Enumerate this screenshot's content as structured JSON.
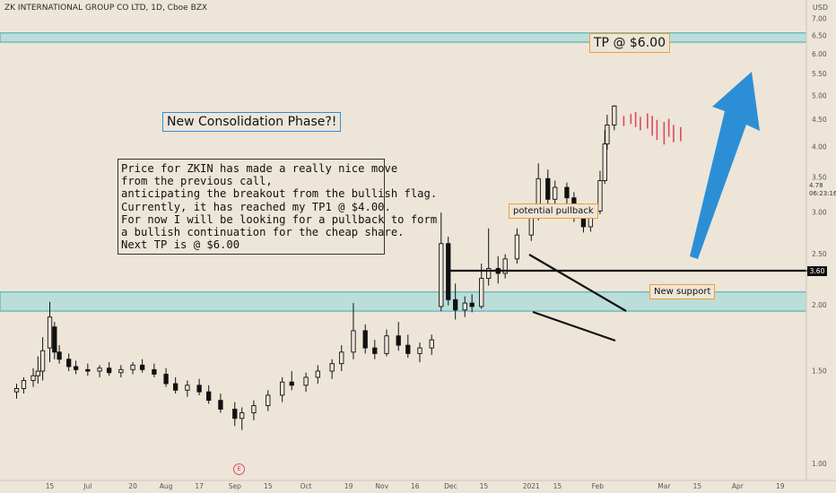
{
  "header": {
    "title": "ZK INTERNATIONAL GROUP CO LTD, 1D, Cboe BZX",
    "currency": "USD"
  },
  "chart_data": {
    "type": "candlestick",
    "title": "ZK INTERNATIONAL GROUP CO LTD, 1D, Cboe BZX",
    "ylabel": "USD",
    "y_scale": "log",
    "ylim": [
      0.93,
      7.6
    ],
    "y_ticks": [
      7.0,
      6.5,
      6.0,
      5.5,
      5.0,
      4.5,
      4.0,
      3.5,
      3.0,
      2.5,
      2.0,
      1.5,
      1.0
    ],
    "y_tick_labels": [
      "7.00",
      "6.50",
      "6.00",
      "5.50",
      "5.00",
      "4.50",
      "4.00",
      "3.50",
      "3.00",
      "2.50",
      "2.00",
      "1.50",
      "1.00"
    ],
    "x_tick_labels": [
      "15",
      "Jul",
      "20",
      "Aug",
      "17",
      "Sep",
      "15",
      "Oct",
      "19",
      "Nov",
      "16",
      "Dec",
      "15",
      "2021",
      "15",
      "Feb",
      "Mar",
      "15",
      "Apr",
      "19"
    ],
    "x_tick_dates": [
      "2020-06-15",
      "2020-07-01",
      "2020-07-20",
      "2020-08-03",
      "2020-08-17",
      "2020-09-01",
      "2020-09-15",
      "2020-10-01",
      "2020-10-19",
      "2020-11-02",
      "2020-11-16",
      "2020-12-01",
      "2020-12-15",
      "2021-01-04",
      "2021-01-15",
      "2021-02-01",
      "2021-03-01",
      "2021-03-15",
      "2021-04-01",
      "2021-04-19"
    ],
    "candles": [
      {
        "date": "2020-06-01",
        "open": 1.37,
        "high": 1.42,
        "low": 1.33,
        "close": 1.39
      },
      {
        "date": "2020-06-04",
        "open": 1.39,
        "high": 1.46,
        "low": 1.36,
        "close": 1.44
      },
      {
        "date": "2020-06-08",
        "open": 1.44,
        "high": 1.52,
        "low": 1.4,
        "close": 1.47
      },
      {
        "date": "2020-06-10",
        "open": 1.47,
        "high": 1.6,
        "low": 1.42,
        "close": 1.5
      },
      {
        "date": "2020-06-12",
        "open": 1.5,
        "high": 1.74,
        "low": 1.44,
        "close": 1.64
      },
      {
        "date": "2020-06-15",
        "open": 1.66,
        "high": 2.03,
        "low": 1.56,
        "close": 1.9
      },
      {
        "date": "2020-06-17",
        "open": 1.82,
        "high": 1.86,
        "low": 1.58,
        "close": 1.63
      },
      {
        "date": "2020-06-19",
        "open": 1.63,
        "high": 1.68,
        "low": 1.55,
        "close": 1.58
      },
      {
        "date": "2020-06-23",
        "open": 1.58,
        "high": 1.62,
        "low": 1.5,
        "close": 1.53
      },
      {
        "date": "2020-06-26",
        "open": 1.53,
        "high": 1.57,
        "low": 1.48,
        "close": 1.51
      },
      {
        "date": "2020-07-01",
        "open": 1.51,
        "high": 1.55,
        "low": 1.47,
        "close": 1.5
      },
      {
        "date": "2020-07-06",
        "open": 1.5,
        "high": 1.54,
        "low": 1.46,
        "close": 1.52
      },
      {
        "date": "2020-07-10",
        "open": 1.52,
        "high": 1.56,
        "low": 1.47,
        "close": 1.49
      },
      {
        "date": "2020-07-15",
        "open": 1.49,
        "high": 1.54,
        "low": 1.46,
        "close": 1.51
      },
      {
        "date": "2020-07-20",
        "open": 1.51,
        "high": 1.56,
        "low": 1.48,
        "close": 1.54
      },
      {
        "date": "2020-07-24",
        "open": 1.54,
        "high": 1.58,
        "low": 1.49,
        "close": 1.51
      },
      {
        "date": "2020-07-29",
        "open": 1.51,
        "high": 1.55,
        "low": 1.46,
        "close": 1.48
      },
      {
        "date": "2020-08-03",
        "open": 1.48,
        "high": 1.52,
        "low": 1.4,
        "close": 1.42
      },
      {
        "date": "2020-08-07",
        "open": 1.42,
        "high": 1.46,
        "low": 1.36,
        "close": 1.38
      },
      {
        "date": "2020-08-12",
        "open": 1.38,
        "high": 1.44,
        "low": 1.34,
        "close": 1.41
      },
      {
        "date": "2020-08-17",
        "open": 1.41,
        "high": 1.45,
        "low": 1.35,
        "close": 1.37
      },
      {
        "date": "2020-08-21",
        "open": 1.37,
        "high": 1.41,
        "low": 1.3,
        "close": 1.32
      },
      {
        "date": "2020-08-26",
        "open": 1.32,
        "high": 1.36,
        "low": 1.25,
        "close": 1.27
      },
      {
        "date": "2020-09-01",
        "open": 1.27,
        "high": 1.31,
        "low": 1.18,
        "close": 1.22
      },
      {
        "date": "2020-09-04",
        "open": 1.22,
        "high": 1.28,
        "low": 1.16,
        "close": 1.25
      },
      {
        "date": "2020-09-09",
        "open": 1.25,
        "high": 1.32,
        "low": 1.21,
        "close": 1.29
      },
      {
        "date": "2020-09-15",
        "open": 1.29,
        "high": 1.38,
        "low": 1.26,
        "close": 1.35
      },
      {
        "date": "2020-09-21",
        "open": 1.35,
        "high": 1.46,
        "low": 1.31,
        "close": 1.43
      },
      {
        "date": "2020-09-25",
        "open": 1.43,
        "high": 1.5,
        "low": 1.38,
        "close": 1.41
      },
      {
        "date": "2020-10-01",
        "open": 1.41,
        "high": 1.49,
        "low": 1.37,
        "close": 1.46
      },
      {
        "date": "2020-10-06",
        "open": 1.46,
        "high": 1.54,
        "low": 1.42,
        "close": 1.5
      },
      {
        "date": "2020-10-12",
        "open": 1.5,
        "high": 1.58,
        "low": 1.45,
        "close": 1.55
      },
      {
        "date": "2020-10-16",
        "open": 1.55,
        "high": 1.68,
        "low": 1.5,
        "close": 1.63
      },
      {
        "date": "2020-10-21",
        "open": 1.63,
        "high": 2.02,
        "low": 1.58,
        "close": 1.79
      },
      {
        "date": "2020-10-26",
        "open": 1.79,
        "high": 1.84,
        "low": 1.62,
        "close": 1.66
      },
      {
        "date": "2020-10-30",
        "open": 1.66,
        "high": 1.72,
        "low": 1.58,
        "close": 1.62
      },
      {
        "date": "2020-11-04",
        "open": 1.62,
        "high": 1.8,
        "low": 1.6,
        "close": 1.75
      },
      {
        "date": "2020-11-09",
        "open": 1.75,
        "high": 1.86,
        "low": 1.64,
        "close": 1.68
      },
      {
        "date": "2020-11-13",
        "open": 1.68,
        "high": 1.76,
        "low": 1.59,
        "close": 1.62
      },
      {
        "date": "2020-11-18",
        "open": 1.62,
        "high": 1.7,
        "low": 1.56,
        "close": 1.66
      },
      {
        "date": "2020-11-23",
        "open": 1.66,
        "high": 1.76,
        "low": 1.61,
        "close": 1.72
      },
      {
        "date": "2020-11-27",
        "open": 1.99,
        "high": 3.0,
        "low": 1.95,
        "close": 2.62
      },
      {
        "date": "2020-11-30",
        "open": 2.62,
        "high": 2.7,
        "low": 2.0,
        "close": 2.05
      },
      {
        "date": "2020-12-03",
        "open": 2.05,
        "high": 2.2,
        "low": 1.88,
        "close": 1.96
      },
      {
        "date": "2020-12-07",
        "open": 1.96,
        "high": 2.08,
        "low": 1.9,
        "close": 2.02
      },
      {
        "date": "2020-12-10",
        "open": 2.02,
        "high": 2.1,
        "low": 1.94,
        "close": 1.99
      },
      {
        "date": "2020-12-14",
        "open": 1.99,
        "high": 2.4,
        "low": 1.97,
        "close": 2.25
      },
      {
        "date": "2020-12-17",
        "open": 2.25,
        "high": 2.8,
        "low": 2.18,
        "close": 2.35
      },
      {
        "date": "2020-12-21",
        "open": 2.35,
        "high": 2.48,
        "low": 2.2,
        "close": 2.3
      },
      {
        "date": "2020-12-24",
        "open": 2.3,
        "high": 2.5,
        "low": 2.25,
        "close": 2.45
      },
      {
        "date": "2020-12-29",
        "open": 2.45,
        "high": 2.8,
        "low": 2.4,
        "close": 2.72
      },
      {
        "date": "2021-01-04",
        "open": 2.72,
        "high": 3.1,
        "low": 2.65,
        "close": 2.98
      },
      {
        "date": "2021-01-07",
        "open": 2.98,
        "high": 3.72,
        "low": 2.9,
        "close": 3.48
      },
      {
        "date": "2021-01-11",
        "open": 3.48,
        "high": 3.62,
        "low": 3.05,
        "close": 3.18
      },
      {
        "date": "2021-01-14",
        "open": 3.18,
        "high": 3.45,
        "low": 3.08,
        "close": 3.35
      },
      {
        "date": "2021-01-19",
        "open": 3.35,
        "high": 3.42,
        "low": 3.1,
        "close": 3.2
      },
      {
        "date": "2021-01-22",
        "open": 3.2,
        "high": 3.28,
        "low": 2.88,
        "close": 2.98
      },
      {
        "date": "2021-01-26",
        "open": 2.98,
        "high": 3.1,
        "low": 2.75,
        "close": 2.82
      },
      {
        "date": "2021-01-29",
        "open": 2.82,
        "high": 3.08,
        "low": 2.76,
        "close": 3.02
      },
      {
        "date": "2021-02-02",
        "open": 3.02,
        "high": 3.6,
        "low": 2.98,
        "close": 3.45
      },
      {
        "date": "2021-02-04",
        "open": 3.45,
        "high": 4.3,
        "low": 3.4,
        "close": 4.05
      },
      {
        "date": "2021-02-05",
        "open": 4.05,
        "high": 4.6,
        "low": 3.95,
        "close": 4.4
      },
      {
        "date": "2021-02-08",
        "open": 4.4,
        "high": 4.8,
        "low": 4.3,
        "close": 4.78
      }
    ],
    "projected_pullback_ticks": [
      {
        "date": "2021-02-12",
        "high": 4.58,
        "low": 4.38
      },
      {
        "date": "2021-02-15",
        "high": 4.62,
        "low": 4.42
      },
      {
        "date": "2021-02-17",
        "high": 4.66,
        "low": 4.36
      },
      {
        "date": "2021-02-19",
        "high": 4.56,
        "low": 4.3
      },
      {
        "date": "2021-02-22",
        "high": 4.63,
        "low": 4.33
      },
      {
        "date": "2021-02-24",
        "high": 4.58,
        "low": 4.2
      },
      {
        "date": "2021-02-26",
        "high": 4.5,
        "low": 4.12
      },
      {
        "date": "2021-03-01",
        "high": 4.46,
        "low": 4.04
      },
      {
        "date": "2021-03-03",
        "high": 4.52,
        "low": 4.18
      },
      {
        "date": "2021-03-05",
        "high": 4.4,
        "low": 4.08
      },
      {
        "date": "2021-03-08",
        "high": 4.36,
        "low": 4.1
      }
    ],
    "resistance_zone": [
      6.32,
      6.58
    ],
    "support_zone": [
      1.95,
      2.12
    ],
    "support_level": 3.6,
    "current_price": "4.78",
    "countdown": "06:23:16",
    "annotations": {
      "tp_label": "TP @ $6.00",
      "phase_label": "New Consolidation Phase?!",
      "pullback_label": "potential pullback",
      "support_label": "New support",
      "price_tag": "3.60",
      "earnings_marker": "E",
      "note_lines": [
        "Price for ZKIN has made a really nice move",
        "from the previous call,",
        "anticipating the breakout from the bullish flag.",
        "Currently, it has reached my TP1 @ $4.00.",
        "For now I will be looking for a pullback to form",
        "a bullish continuation for the cheap share.",
        "Next TP is @ $6.00"
      ]
    },
    "colors": {
      "background": "#ede5d8",
      "zone_fill": "#a9dbd8",
      "zone_border": "#3fa9b4",
      "candle": "#111111",
      "projection": "#e0485e",
      "arrow": "#2c8fd6",
      "label_border": "#f0a030"
    },
    "grid": false,
    "legend": "none"
  }
}
